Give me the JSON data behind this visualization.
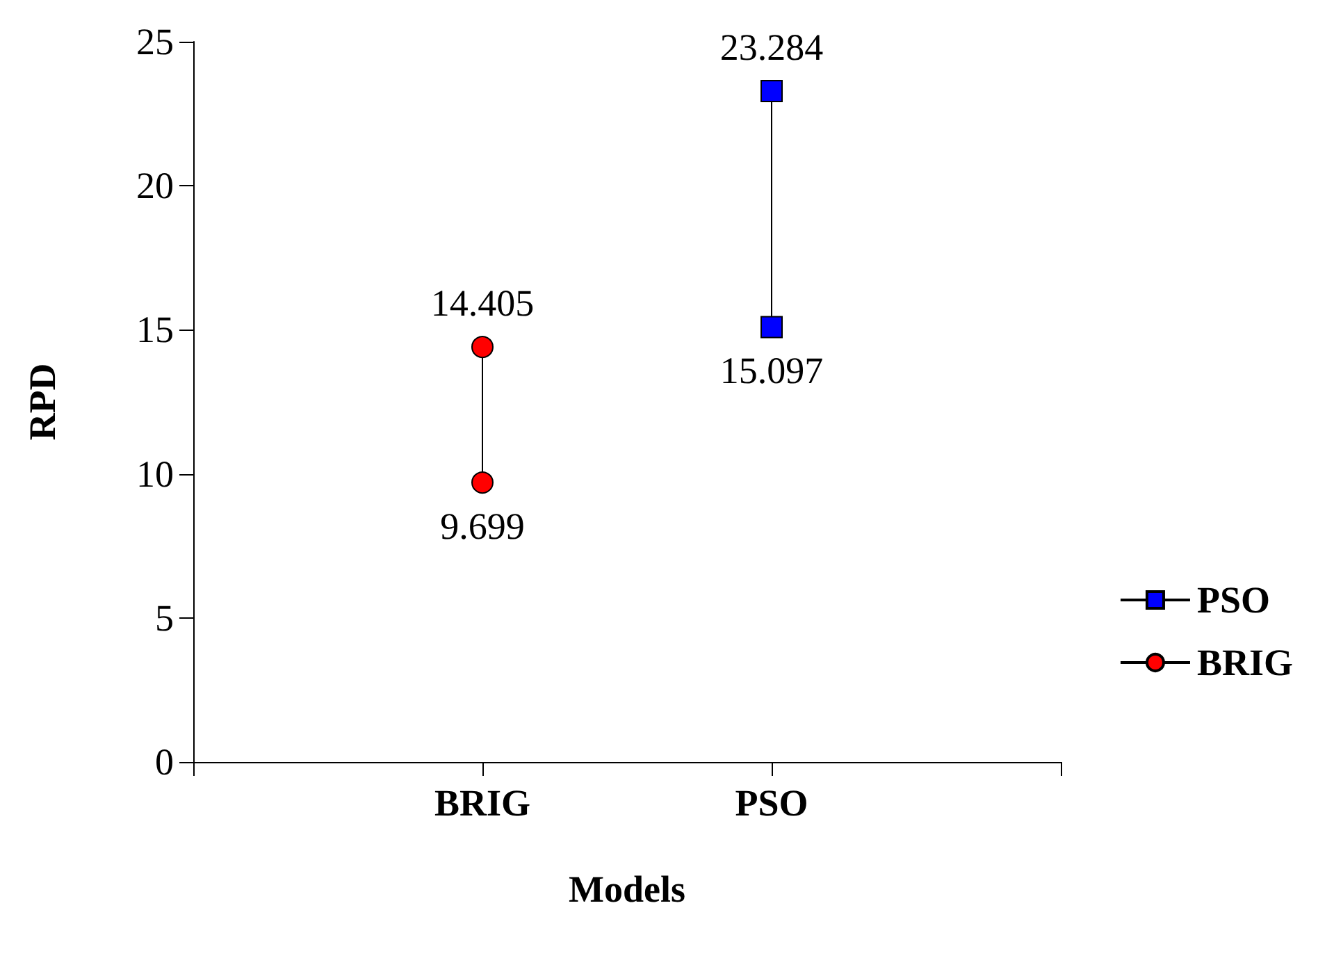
{
  "chart_data": {
    "type": "line",
    "xlabel": "Models",
    "ylabel": "RPD",
    "categories": [
      null,
      "BRIG",
      "PSO",
      null
    ],
    "series": [
      {
        "name": "PSO",
        "color": "#0000ff",
        "marker": "square",
        "x": [
          "PSO",
          "PSO"
        ],
        "values": [
          23.284,
          15.097
        ]
      },
      {
        "name": "BRIG",
        "color": "#ff0000",
        "marker": "circle",
        "x": [
          "BRIG",
          "BRIG"
        ],
        "values": [
          14.405,
          9.699
        ]
      }
    ],
    "ylim": [
      0,
      25
    ],
    "yticks": [
      0,
      5,
      10,
      15,
      20,
      25
    ],
    "grid": false,
    "legend": "right",
    "data_labels": true
  }
}
